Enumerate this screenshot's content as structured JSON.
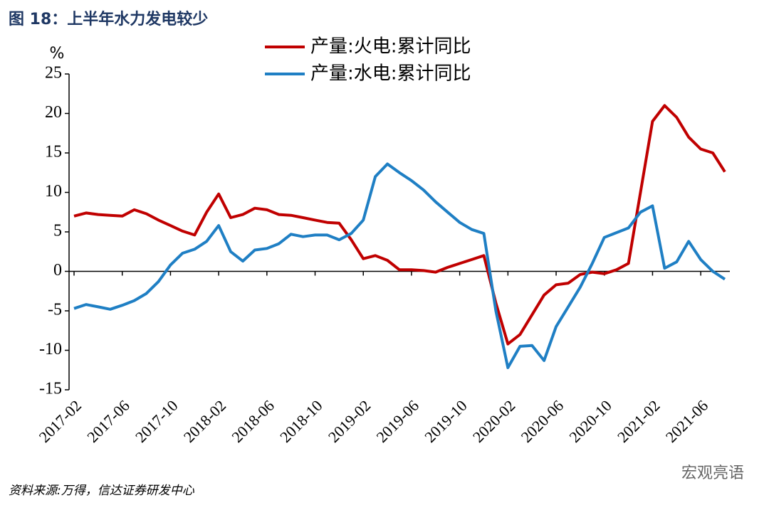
{
  "chart_data": {
    "type": "line",
    "title": "图 18：上半年水力发电较少",
    "y_unit": "%",
    "source": "资料来源:万得，信达证券研发中心",
    "watermark": "宏观亮语",
    "categories": [
      "2017-02",
      null,
      null,
      null,
      "2017-06",
      null,
      null,
      null,
      "2017-10",
      null,
      null,
      null,
      "2018-02",
      null,
      null,
      null,
      "2018-06",
      null,
      null,
      null,
      "2018-10",
      null,
      null,
      null,
      "2019-02",
      null,
      null,
      null,
      "2019-06",
      null,
      null,
      null,
      "2019-10",
      null,
      null,
      null,
      "2020-02",
      null,
      null,
      null,
      "2020-06",
      null,
      null,
      null,
      "2020-10",
      null,
      null,
      null,
      "2021-02",
      null,
      null,
      null,
      "2021-06",
      null,
      null
    ],
    "series": [
      {
        "name": "产量:火电:累计同比",
        "color": "#c00000",
        "values": [
          7.0,
          7.4,
          7.2,
          7.1,
          7.0,
          7.8,
          7.3,
          6.5,
          5.8,
          5.1,
          4.6,
          7.5,
          9.8,
          6.8,
          7.2,
          8.0,
          7.8,
          7.2,
          7.1,
          6.8,
          6.5,
          6.2,
          6.1,
          4.0,
          1.6,
          2.0,
          1.4,
          0.2,
          0.2,
          0.1,
          -0.1,
          0.5,
          1.0,
          1.5,
          2.0,
          -4.0,
          -9.2,
          -8.0,
          -5.5,
          -3.0,
          -1.7,
          -1.5,
          -0.4,
          -0.1,
          -0.3,
          0.2,
          1.0,
          10.0,
          19.0,
          21.0,
          19.5,
          17.0,
          15.5,
          15.0,
          12.6
        ]
      },
      {
        "name": "产量:水电:累计同比",
        "color": "#1f7fc4",
        "values": [
          -4.7,
          -4.2,
          -4.5,
          -4.8,
          -4.3,
          -3.7,
          -2.8,
          -1.3,
          0.8,
          2.3,
          2.8,
          3.8,
          5.8,
          2.5,
          1.3,
          2.7,
          2.9,
          3.5,
          4.7,
          4.4,
          4.6,
          4.6,
          4.0,
          4.8,
          6.5,
          12.0,
          13.6,
          12.5,
          11.5,
          10.3,
          8.8,
          7.5,
          6.2,
          5.3,
          4.8,
          -5.0,
          -12.2,
          -9.5,
          -9.4,
          -11.3,
          -7.0,
          -4.5,
          -2.0,
          1.0,
          4.3,
          4.9,
          5.5,
          7.5,
          8.3,
          0.4,
          1.2,
          3.8,
          1.5,
          0.0,
          -1.0
        ]
      }
    ],
    "ylim": [
      -15,
      25
    ],
    "yticks": [
      -15,
      -10,
      -5,
      0,
      5,
      10,
      15,
      20,
      25
    ],
    "grid": false,
    "legend": "top"
  }
}
